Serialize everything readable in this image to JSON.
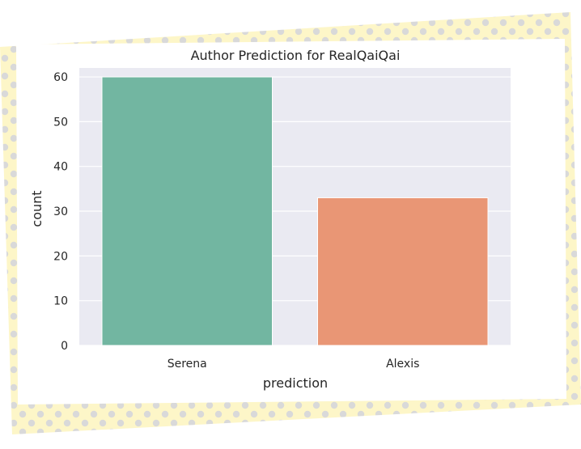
{
  "decor": {
    "frame_pattern": "polka-dot",
    "frame_color": "#fdf6c8",
    "dot_color": "#d9d9d9"
  },
  "chart_data": {
    "type": "bar",
    "title": "Author Prediction for RealQaiQai",
    "xlabel": "prediction",
    "ylabel": "count",
    "categories": [
      "Serena",
      "Alexis"
    ],
    "values": [
      60,
      33
    ],
    "colors": [
      "#72b6a1",
      "#e99675"
    ],
    "ylim": [
      0,
      62
    ],
    "yticks": [
      0,
      10,
      20,
      30,
      40,
      50,
      60
    ],
    "background_color": "#eaeaf2",
    "grid": true,
    "grid_color": "#ffffff",
    "legend": "none"
  }
}
